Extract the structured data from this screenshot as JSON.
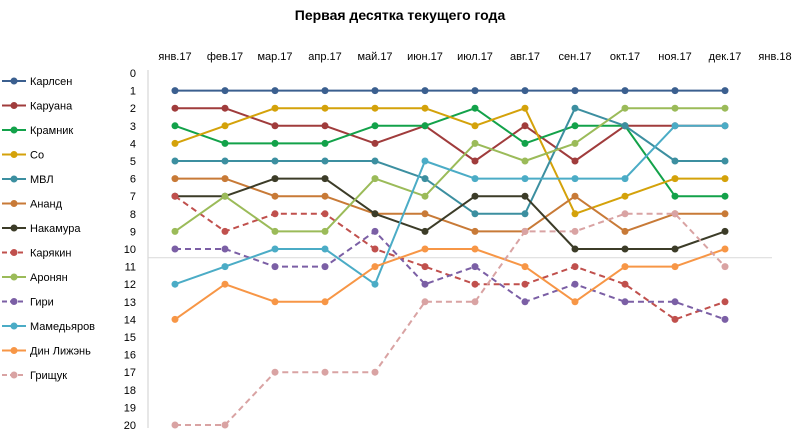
{
  "chart_data": {
    "type": "line",
    "title": "Первая десятка текущего года",
    "categories": [
      "янв.17",
      "фев.17",
      "мар.17",
      "апр.17",
      "май.17",
      "июн.17",
      "июл.17",
      "авг.17",
      "сен.17",
      "окт.17",
      "ноя.17",
      "дек.17",
      "янв.18"
    ],
    "y_ticks": [
      "0",
      "1",
      "2",
      "3",
      "4",
      "5",
      "6",
      "7",
      "8",
      "9",
      "10",
      "11",
      "12",
      "13",
      "14",
      "15",
      "16",
      "17",
      "18",
      "19",
      "20"
    ],
    "ylim": [
      20,
      0
    ],
    "y_inverted": true,
    "grid": false,
    "legend_position": "left",
    "reference_line": 10.5,
    "series": [
      {
        "name": "Карлсен",
        "color": "#3b5f8f",
        "dashed": false,
        "values": [
          1,
          1,
          1,
          1,
          1,
          1,
          1,
          1,
          1,
          1,
          1,
          1,
          null
        ]
      },
      {
        "name": "Каруана",
        "color": "#a03c3c",
        "dashed": false,
        "values": [
          2,
          2,
          3,
          3,
          4,
          3,
          5,
          3,
          5,
          3,
          3,
          3,
          null
        ]
      },
      {
        "name": "Крамник",
        "color": "#13a24a",
        "dashed": false,
        "values": [
          3,
          4,
          4,
          4,
          3,
          3,
          2,
          4,
          3,
          3,
          7,
          7,
          null
        ]
      },
      {
        "name": "Со",
        "color": "#d4a20a",
        "dashed": false,
        "values": [
          4,
          3,
          2,
          2,
          2,
          2,
          3,
          2,
          8,
          7,
          6,
          6,
          null
        ]
      },
      {
        "name": "МВЛ",
        "color": "#3c8fa0",
        "dashed": false,
        "values": [
          5,
          5,
          5,
          5,
          5,
          6,
          8,
          8,
          2,
          3,
          5,
          5,
          null
        ]
      },
      {
        "name": "Ананд",
        "color": "#c87a37",
        "dashed": false,
        "values": [
          6,
          6,
          7,
          7,
          8,
          8,
          9,
          9,
          7,
          9,
          8,
          8,
          null
        ]
      },
      {
        "name": "Накамура",
        "color": "#3c3c28",
        "dashed": false,
        "values": [
          7,
          7,
          6,
          6,
          8,
          9,
          7,
          7,
          10,
          10,
          10,
          9,
          null
        ]
      },
      {
        "name": "Карякин",
        "color": "#c0504d",
        "dashed": true,
        "values": [
          7,
          9,
          8,
          8,
          10,
          11,
          12,
          12,
          11,
          12,
          14,
          13,
          null
        ]
      },
      {
        "name": "Аронян",
        "color": "#9bbb59",
        "dashed": false,
        "values": [
          9,
          7,
          9,
          9,
          6,
          7,
          4,
          5,
          4,
          2,
          2,
          2,
          null
        ]
      },
      {
        "name": "Гири",
        "color": "#7b5fa5",
        "dashed": true,
        "values": [
          10,
          10,
          11,
          11,
          9,
          12,
          11,
          13,
          12,
          13,
          13,
          14,
          null
        ]
      },
      {
        "name": "Мамедьяров",
        "color": "#4bacc6",
        "dashed": false,
        "values": [
          12,
          11,
          10,
          10,
          12,
          5,
          6,
          6,
          6,
          6,
          3,
          3,
          null
        ]
      },
      {
        "name": "Дин Лижэнь",
        "color": "#f79646",
        "dashed": false,
        "values": [
          14,
          12,
          13,
          13,
          11,
          10,
          10,
          11,
          13,
          11,
          11,
          10,
          null
        ]
      },
      {
        "name": "Грищук",
        "color": "#d9a3a3",
        "dashed": true,
        "values": [
          20,
          20,
          17,
          17,
          17,
          13,
          13,
          9,
          9,
          8,
          8,
          11,
          null
        ]
      }
    ]
  }
}
